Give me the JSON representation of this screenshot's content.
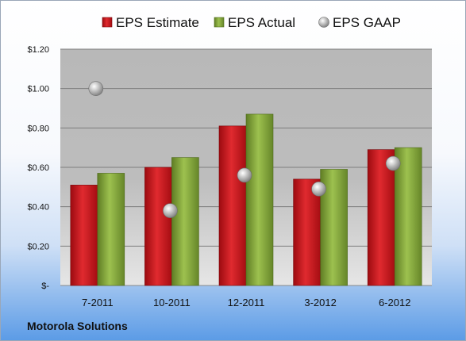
{
  "footer_label": "Motorola Solutions",
  "chart_data": {
    "type": "bar",
    "categories": [
      "7-2011",
      "10-2011",
      "12-2011",
      "3-2012",
      "6-2012"
    ],
    "series": [
      {
        "name": "EPS Estimate",
        "kind": "bar",
        "color": "#c8141b",
        "values": [
          0.51,
          0.6,
          0.81,
          0.54,
          0.69
        ]
      },
      {
        "name": "EPS Actual",
        "kind": "bar",
        "color": "#86a83b",
        "values": [
          0.57,
          0.65,
          0.87,
          0.59,
          0.7
        ]
      },
      {
        "name": "EPS GAAP",
        "kind": "marker",
        "color": "#a8a8a8",
        "values": [
          1.0,
          0.38,
          0.56,
          0.49,
          0.62
        ]
      }
    ],
    "ylim": [
      0,
      1.2
    ],
    "yticks": [
      {
        "value": 0,
        "label": "$-"
      },
      {
        "value": 0.2,
        "label": "$0.20"
      },
      {
        "value": 0.4,
        "label": "$0.40"
      },
      {
        "value": 0.6,
        "label": "$0.60"
      },
      {
        "value": 0.8,
        "label": "$0.80"
      },
      {
        "value": 1.0,
        "label": "$1.00"
      },
      {
        "value": 1.2,
        "label": "$1.20"
      }
    ],
    "grid": true,
    "legend_position": "top"
  }
}
